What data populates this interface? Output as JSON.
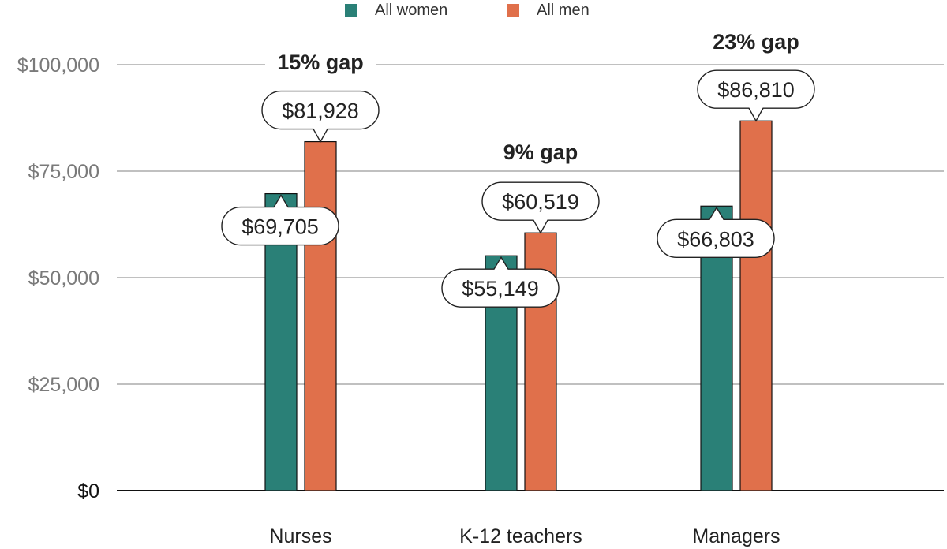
{
  "legend": [
    {
      "label": "All women",
      "color": "#2a8077"
    },
    {
      "label": "All men",
      "color": "#e0704b"
    }
  ],
  "chart_data": {
    "type": "bar",
    "categories": [
      "Nurses",
      "K-12 teachers",
      "Managers"
    ],
    "series": [
      {
        "name": "All women",
        "color": "#2a8077",
        "values": [
          69705,
          55149,
          66803
        ]
      },
      {
        "name": "All men",
        "color": "#e0704b",
        "values": [
          81928,
          60519,
          86810
        ]
      }
    ],
    "data_labels": {
      "All women": [
        "$69,705",
        "$55,149",
        "$66,803"
      ],
      "All men": [
        "$81,928",
        "$60,519",
        "$86,810"
      ]
    },
    "annotations": [
      "15% gap",
      "9% gap",
      "23% gap"
    ],
    "yticks": [
      0,
      25000,
      50000,
      75000,
      100000
    ],
    "ytick_labels": [
      "$0",
      "$25,000",
      "$50,000",
      "$75,000",
      "$100,000"
    ],
    "ylim": [
      0,
      100000
    ],
    "grid": true,
    "legend_position": "top-center",
    "title": "",
    "xlabel": "",
    "ylabel": ""
  }
}
